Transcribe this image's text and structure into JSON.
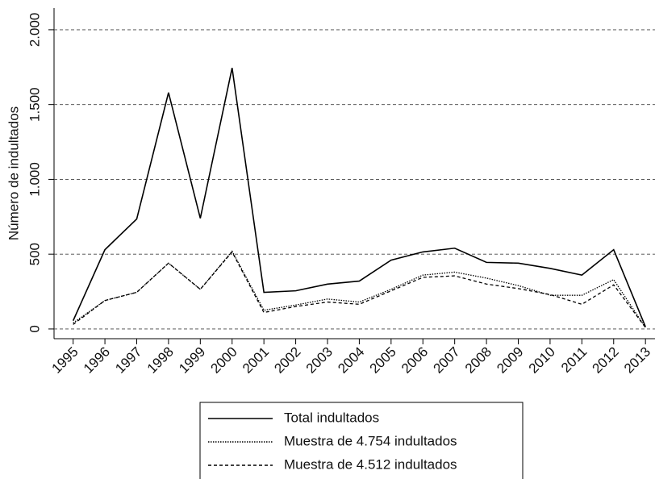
{
  "chart_data": {
    "type": "line",
    "ylabel": "Número de indultados",
    "x": [
      1995,
      1996,
      1997,
      1998,
      1999,
      2000,
      2001,
      2002,
      2003,
      2004,
      2005,
      2006,
      2007,
      2008,
      2009,
      2010,
      2011,
      2012,
      2013
    ],
    "series": [
      {
        "name": "Total indultados",
        "color": "#000000",
        "linestyle": "solid",
        "values": [
          55,
          530,
          735,
          1580,
          740,
          1745,
          245,
          255,
          300,
          320,
          460,
          515,
          540,
          445,
          440,
          405,
          360,
          530,
          15
        ]
      },
      {
        "name": "Muestra de 4.754 indultados",
        "color": "#000000",
        "linestyle": "dotted",
        "values": [
          40,
          190,
          245,
          440,
          265,
          520,
          125,
          160,
          200,
          180,
          265,
          360,
          380,
          340,
          290,
          225,
          225,
          330,
          10
        ]
      },
      {
        "name": "Muestra de 4.512 indultados",
        "color": "#000000",
        "linestyle": "dashed",
        "values": [
          30,
          190,
          245,
          440,
          265,
          515,
          110,
          150,
          180,
          165,
          255,
          345,
          355,
          300,
          270,
          230,
          165,
          295,
          10
        ]
      }
    ],
    "xlim": [
      1994.4,
      2013.3
    ],
    "xticks": [
      1995,
      1996,
      1997,
      1998,
      1999,
      2000,
      2001,
      2002,
      2003,
      2004,
      2005,
      2006,
      2007,
      2008,
      2009,
      2010,
      2011,
      2012,
      2013
    ],
    "ylim": [
      -65,
      2145
    ],
    "yticks": [
      0,
      500,
      {
        "value": 1000,
        "label": "1.000"
      },
      {
        "value": 1500,
        "label": "1.500"
      },
      {
        "value": 2000,
        "label": "2.000"
      }
    ],
    "grid": true,
    "legend": "bottom"
  }
}
